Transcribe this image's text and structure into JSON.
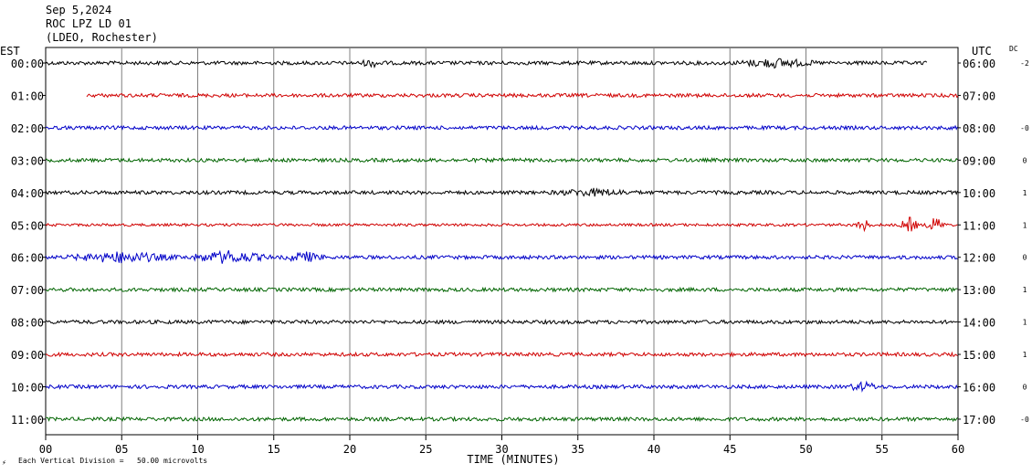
{
  "header": {
    "date": "Sep 5,2024",
    "station": "ROC LPZ LD 01",
    "network": "(LDEO, Rochester)"
  },
  "left_zone_label": "EST",
  "right_zone_label": "UTC",
  "dc_label": "DC",
  "footer": {
    "scale_note": "Each Vertical Division =   50.00 microvolts",
    "corner_mark": "⚡"
  },
  "chart_data": {
    "type": "line",
    "title": "",
    "xlabel": "TIME (MINUTES)",
    "xlim": [
      0,
      60
    ],
    "x_ticks": [
      "00",
      "05",
      "10",
      "15",
      "20",
      "25",
      "30",
      "35",
      "40",
      "45",
      "50",
      "55",
      "60"
    ],
    "trace_colors": [
      "#000000",
      "#d00000",
      "#0000c8",
      "#006400"
    ],
    "rows": [
      {
        "est": "00:00",
        "utc": "06:00",
        "dc": "-2",
        "start_min": 0.0,
        "end_min": 58.0,
        "amp": 2.0,
        "bursts": [
          {
            "at": 48.0,
            "width": 3.0,
            "amp": 4.0
          },
          {
            "at": 21.5,
            "width": 1.0,
            "amp": 3.0
          }
        ]
      },
      {
        "est": "01:00",
        "utc": "07:00",
        "dc": "",
        "start_min": 2.7,
        "end_min": 60.0,
        "amp": 2.0,
        "bursts": []
      },
      {
        "est": "02:00",
        "utc": "08:00",
        "dc": "-0",
        "start_min": 0.0,
        "end_min": 60.0,
        "amp": 2.0,
        "bursts": []
      },
      {
        "est": "03:00",
        "utc": "09:00",
        "dc": "0",
        "start_min": 0.0,
        "end_min": 60.0,
        "amp": 2.0,
        "bursts": []
      },
      {
        "est": "04:00",
        "utc": "10:00",
        "dc": "1",
        "start_min": 0.0,
        "end_min": 60.0,
        "amp": 2.0,
        "bursts": [
          {
            "at": 36.0,
            "width": 3.0,
            "amp": 3.0
          }
        ]
      },
      {
        "est": "05:00",
        "utc": "11:00",
        "dc": "1",
        "start_min": 0.0,
        "end_min": 60.0,
        "amp": 1.5,
        "bursts": [
          {
            "at": 53.8,
            "width": 0.6,
            "amp": 6.0
          },
          {
            "at": 56.8,
            "width": 0.7,
            "amp": 8.0
          },
          {
            "at": 58.5,
            "width": 0.7,
            "amp": 8.0
          }
        ]
      },
      {
        "est": "06:00",
        "utc": "12:00",
        "dc": "0",
        "start_min": 0.0,
        "end_min": 60.0,
        "amp": 2.0,
        "bursts": [
          {
            "at": 5.0,
            "width": 4.0,
            "amp": 5.0
          },
          {
            "at": 12.0,
            "width": 3.0,
            "amp": 6.0
          },
          {
            "at": 17.0,
            "width": 1.5,
            "amp": 5.0
          }
        ]
      },
      {
        "est": "07:00",
        "utc": "13:00",
        "dc": "1",
        "start_min": 0.0,
        "end_min": 60.0,
        "amp": 2.0,
        "bursts": []
      },
      {
        "est": "08:00",
        "utc": "14:00",
        "dc": "1",
        "start_min": 0.0,
        "end_min": 60.0,
        "amp": 2.0,
        "bursts": []
      },
      {
        "est": "09:00",
        "utc": "15:00",
        "dc": "1",
        "start_min": 0.0,
        "end_min": 60.0,
        "amp": 2.0,
        "bursts": []
      },
      {
        "est": "10:00",
        "utc": "16:00",
        "dc": "0",
        "start_min": 0.0,
        "end_min": 60.0,
        "amp": 2.0,
        "bursts": [
          {
            "at": 53.8,
            "width": 1.2,
            "amp": 4.0
          }
        ]
      },
      {
        "est": "11:00",
        "utc": "17:00",
        "dc": "-0",
        "start_min": 0.0,
        "end_min": 60.0,
        "amp": 2.0,
        "bursts": []
      }
    ]
  }
}
